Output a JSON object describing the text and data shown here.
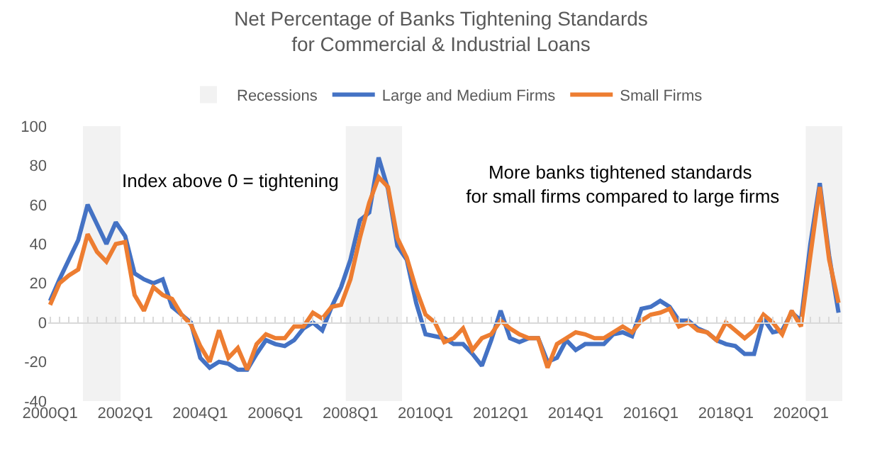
{
  "chart_data": {
    "type": "line",
    "title": "Net Percentage of Banks Tightening Standards\nfor Commercial & Industrial Loans",
    "annotations": [
      "Recessions",
      "Index above 0 = tightening",
      "More banks tightened standards\n for small firms compared to large firms"
    ],
    "categories": [
      "2000Q1",
      null,
      null,
      null,
      null,
      null,
      null,
      null,
      "2002Q1",
      null,
      null,
      null,
      null,
      null,
      null,
      null,
      "2004Q1",
      null,
      null,
      null,
      null,
      null,
      null,
      null,
      "2006Q1",
      null,
      null,
      null,
      null,
      null,
      null,
      null,
      "2008Q1",
      null,
      null,
      null,
      null,
      null,
      null,
      null,
      "2010Q1",
      null,
      null,
      null,
      null,
      null,
      null,
      null,
      "2012Q1",
      null,
      null,
      null,
      null,
      null,
      null,
      null,
      "2014Q1",
      null,
      null,
      null,
      null,
      null,
      null,
      null,
      "2016Q1",
      null,
      null,
      null,
      null,
      null,
      null,
      null,
      "2018Q1",
      null,
      null,
      null,
      null,
      null,
      null,
      null,
      "2020Q1",
      null,
      null,
      null,
      null
    ],
    "series": [
      {
        "name": "Large and Medium Firms",
        "color": "#4472c4",
        "values": [
          11,
          22,
          32,
          42,
          60,
          50,
          40,
          51,
          44,
          25,
          22,
          20,
          22,
          8,
          4,
          0,
          -18,
          -23,
          -20,
          -21,
          -24,
          -24,
          -16,
          -9,
          -11,
          -12,
          -9,
          -3,
          0,
          -4,
          8,
          18,
          32,
          52,
          56,
          84,
          68,
          39,
          32,
          10,
          -6,
          -7,
          -8,
          -11,
          -11,
          -16,
          -22,
          -9,
          6,
          -8,
          -10,
          -8,
          -8,
          -20,
          -18,
          -9,
          -14,
          -11,
          -11,
          -11,
          -6,
          -5,
          -7,
          7,
          8,
          11,
          8,
          1,
          1,
          -3,
          -5,
          -9,
          -11,
          -12,
          -16,
          -16,
          2,
          -5,
          -4,
          5,
          1,
          40,
          71,
          34,
          5
        ]
      },
      {
        "name": "Small Firms",
        "color": "#ed7d31",
        "values": [
          9,
          20,
          24,
          27,
          45,
          36,
          31,
          40,
          41,
          14,
          6,
          18,
          14,
          12,
          4,
          -1,
          -12,
          -20,
          -4,
          -18,
          -13,
          -24,
          -11,
          -6,
          -8,
          -8,
          -2,
          -2,
          5,
          2,
          8,
          9,
          22,
          43,
          61,
          74,
          69,
          43,
          33,
          17,
          4,
          0,
          -10,
          -8,
          -3,
          -14,
          -8,
          -6,
          1,
          -3,
          -6,
          -8,
          -8,
          -23,
          -11,
          -8,
          -5,
          -6,
          -8,
          -8,
          -5,
          -2,
          -5,
          1,
          4,
          5,
          7,
          -2,
          0,
          -4,
          -5,
          -9,
          0,
          -4,
          -8,
          -4,
          4,
          0,
          -6,
          6,
          -2,
          34,
          69,
          32,
          10
        ]
      }
    ],
    "ylim": [
      -40,
      100
    ],
    "yticks": [
      -40,
      -20,
      0,
      20,
      40,
      60,
      80,
      100
    ],
    "ref_lines": [
      {
        "axis": "y",
        "value": 0,
        "color": "#d9d9d9"
      }
    ],
    "grid": false,
    "legend": "top",
    "marker": "none",
    "line_style": "solid"
  }
}
